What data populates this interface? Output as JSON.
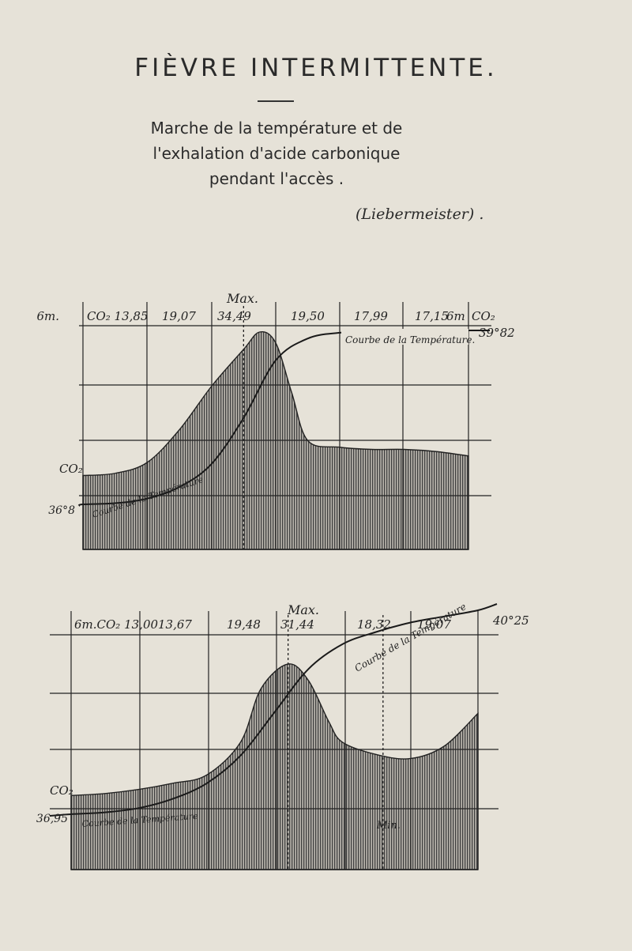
{
  "page": {
    "title": "FIÈVRE INTERMITTENTE.",
    "subtitle_lines": [
      "Marche de la température et de",
      "l'exhalation d'acide carbonique",
      "pendant l'accès ."
    ],
    "source": "(Liebermeister) ."
  },
  "chart_data": [
    {
      "type": "area",
      "max_label": "Max.",
      "header_values": [
        "6m.",
        "CO₂ 13,85",
        "19,07",
        "34,49",
        "19,50",
        "17,99",
        "17,15",
        "6m",
        "CO₂"
      ],
      "co2_label": "CO₂",
      "temperature_start_label": "36°8",
      "temperature_end_label": "39°82",
      "temperature_curve_label": "Courbe de la Température",
      "temperature_curve_label_box": "Courbe de la Température.",
      "co2_series": {
        "x": [
          0,
          0.5,
          1,
          1.5,
          2,
          2.5,
          2.75,
          3,
          3.25,
          3.5,
          4,
          4.5,
          5,
          5.5,
          6
        ],
        "values": [
          0.34,
          0.35,
          0.4,
          0.55,
          0.75,
          0.92,
          1.0,
          0.95,
          0.72,
          0.5,
          0.47,
          0.46,
          0.46,
          0.45,
          0.43
        ]
      },
      "temperature_series": {
        "x": [
          0,
          0.5,
          1,
          1.5,
          2,
          2.5,
          3,
          3.5,
          4,
          4.5,
          5,
          5.5,
          6
        ],
        "values": [
          36.8,
          36.82,
          36.9,
          37.1,
          37.5,
          38.3,
          39.3,
          39.68,
          39.78,
          39.81,
          39.82,
          39.82,
          39.82
        ]
      },
      "max_x": 2.5
    },
    {
      "type": "area",
      "max_label": "Max.",
      "min_label": "Min.",
      "header_values": [
        "6m.CO₂ 13,00",
        "13,67",
        "19,48",
        "31,44",
        "18,32",
        "19,07"
      ],
      "co2_label": "CO₂",
      "temperature_start_label": "36,95",
      "temperature_end_label": "40°25",
      "temperature_curve_label": "Courbe de la Température",
      "co2_series": {
        "x": [
          0,
          0.5,
          1,
          1.5,
          2,
          2.5,
          2.8,
          3.2,
          3.5,
          3.8,
          4,
          4.5,
          5,
          5.5,
          6
        ],
        "values": [
          0.36,
          0.37,
          0.39,
          0.42,
          0.46,
          0.62,
          0.88,
          1.0,
          0.92,
          0.72,
          0.62,
          0.56,
          0.54,
          0.6,
          0.76
        ]
      },
      "temperature_series": {
        "x": [
          0,
          0.5,
          1,
          1.5,
          2,
          2.5,
          3,
          3.5,
          4,
          4.5,
          5,
          5.5,
          6
        ],
        "values": [
          36.95,
          36.98,
          37.05,
          37.2,
          37.45,
          37.9,
          38.6,
          39.3,
          39.7,
          39.9,
          40.05,
          40.15,
          40.25
        ]
      },
      "max_x": 3.2,
      "min_x": 4.6
    }
  ]
}
